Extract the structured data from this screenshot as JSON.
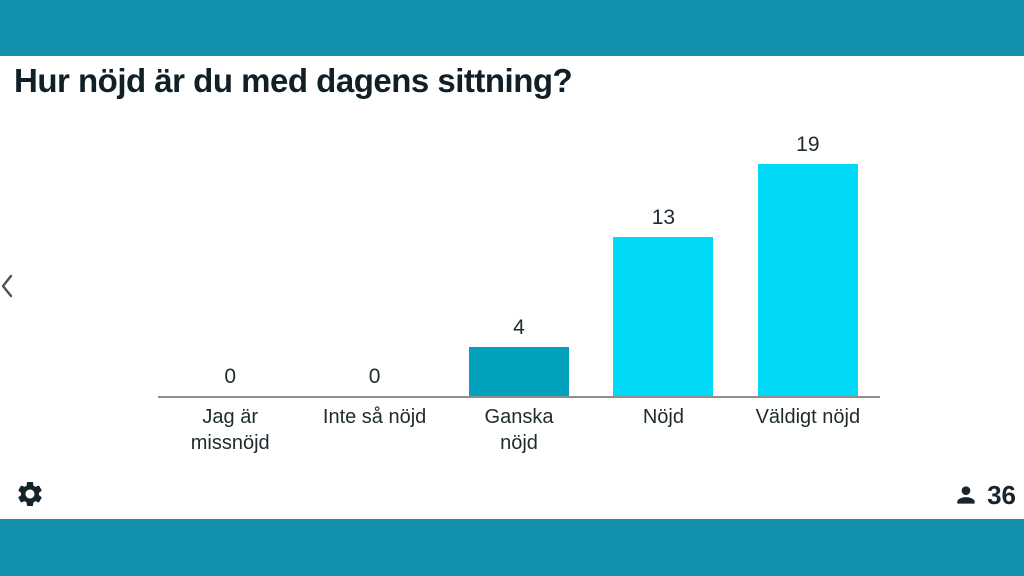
{
  "header": {
    "title": "Hur nöjd är du med dagens sittning?"
  },
  "chart_data": {
    "type": "bar",
    "title": "Hur nöjd är du med dagens sittning?",
    "categories": [
      "Jag är missnöjd",
      "Inte så nöjd",
      "Ganska nöjd",
      "Nöjd",
      "Väldigt nöjd"
    ],
    "values": [
      0,
      0,
      4,
      13,
      19
    ],
    "value_labels": [
      "0",
      "0",
      "4",
      "13",
      "19"
    ],
    "xlabel": "",
    "ylabel": "",
    "ylim": [
      0,
      19
    ],
    "grid": false,
    "legend": "none",
    "bar_colors": [
      "#00D9F7",
      "#00D9F7",
      "#00A2BC",
      "#00D9F7",
      "#00D9F7"
    ]
  },
  "footer": {
    "participants_count": "36"
  },
  "nav": {
    "prev": "previous-slide"
  },
  "icons": {
    "settings": "gear-icon",
    "participants": "person-icon",
    "prev": "chevron-left-icon"
  },
  "colors": {
    "band_teal": "#1591B0",
    "bar_cyan": "#00D9F7",
    "bar_dark_teal": "#00A2BC",
    "axis_gray": "#8F8F8F",
    "text_dark": "#111F26"
  }
}
